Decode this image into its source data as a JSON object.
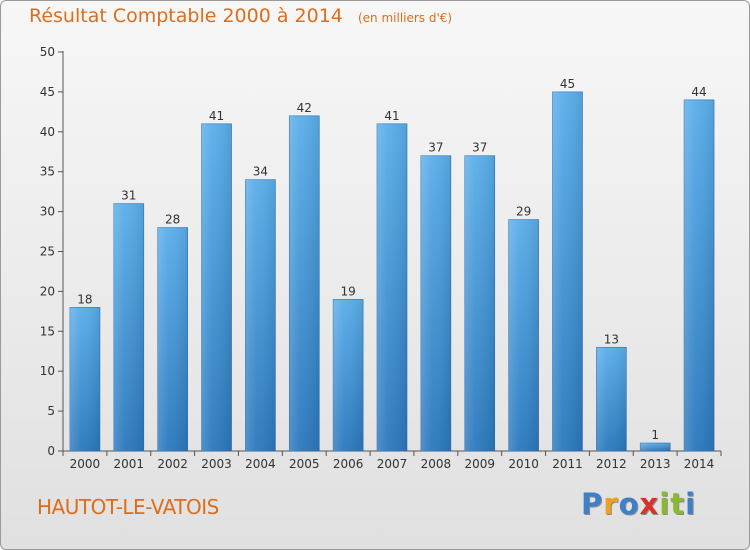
{
  "chart_data": {
    "type": "bar",
    "title": "Résultat Comptable 2000 à 2014",
    "subtitle": "(en milliers d'€)",
    "xlabel": "",
    "ylabel": "",
    "categories": [
      "2000",
      "2001",
      "2002",
      "2003",
      "2004",
      "2005",
      "2006",
      "2007",
      "2008",
      "2009",
      "2010",
      "2011",
      "2012",
      "2013",
      "2014"
    ],
    "values": [
      18,
      31,
      28,
      41,
      34,
      42,
      19,
      41,
      37,
      37,
      29,
      45,
      13,
      1,
      44
    ],
    "ylim": [
      0,
      50
    ],
    "yticks": [
      0,
      5,
      10,
      15,
      20,
      25,
      30,
      35,
      40,
      45,
      50
    ],
    "grid": false,
    "bar_color": "#3a8fd6",
    "title_color": "#dd6d1c"
  },
  "commune": "HAUTOT-LE-VATOIS",
  "logo": {
    "letters": [
      "P",
      "r",
      "o",
      "x",
      "i",
      "t",
      "i"
    ],
    "colors": [
      "#3f7fc8",
      "#f0a020",
      "#3f7fc8",
      "#d8322a",
      "#8ab82e",
      "#8ab82e",
      "#3f7fc8"
    ]
  }
}
